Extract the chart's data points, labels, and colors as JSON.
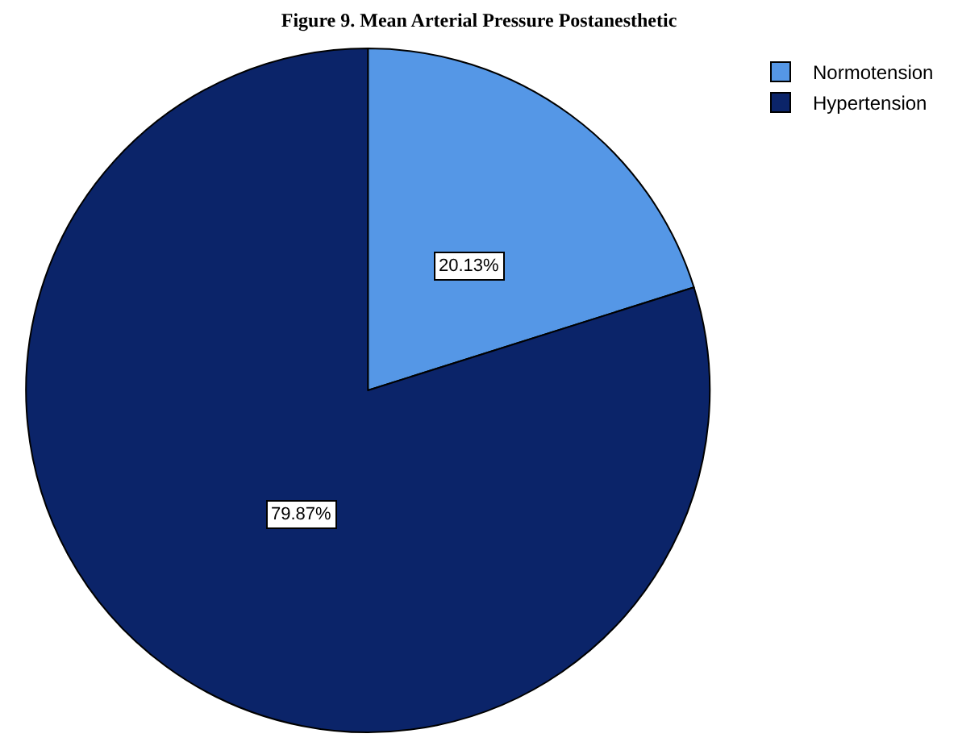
{
  "chart_data": {
    "type": "pie",
    "title": "Figure 9. Mean Arterial Pressure Postanesthetic",
    "categories": [
      "Normotension",
      "Hypertension"
    ],
    "values": [
      20.13,
      79.87
    ],
    "colors": [
      "#5597e6",
      "#0b2469"
    ],
    "value_labels": [
      "20.13%",
      "79.87%"
    ],
    "legend": "top right"
  }
}
